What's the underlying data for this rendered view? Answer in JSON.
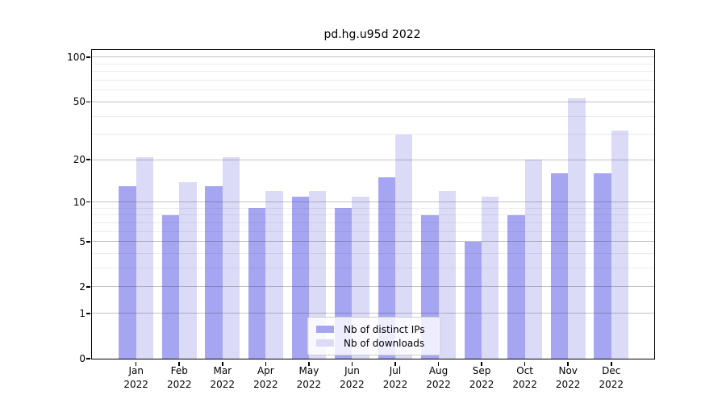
{
  "title": "pd.hg.u95d 2022",
  "chart_data": {
    "type": "bar",
    "title": "pd.hg.u95d 2022",
    "categories": [
      "Jan",
      "Feb",
      "Mar",
      "Apr",
      "May",
      "Jun",
      "Jul",
      "Aug",
      "Sep",
      "Oct",
      "Nov",
      "Dec"
    ],
    "category_year": "2022",
    "series": [
      {
        "name": "Nb of distinct IPs",
        "color": "#a5a5f2",
        "values": [
          13,
          8,
          13,
          9,
          11,
          9,
          15,
          8,
          5,
          8,
          16,
          16
        ]
      },
      {
        "name": "Nb of downloads",
        "color": "#dbdbf8",
        "values": [
          21,
          14,
          21,
          12,
          12,
          11,
          30,
          12,
          11,
          20,
          53,
          32
        ]
      }
    ],
    "xlabel": "",
    "ylabel": "",
    "yscale": "log1p",
    "ylim": [
      0,
      112
    ],
    "yticks": [
      100,
      50,
      20,
      10,
      5,
      2,
      1,
      0
    ],
    "minor_gridlines": [
      3,
      4,
      6,
      7,
      8,
      9,
      30,
      40,
      60,
      70,
      80,
      90
    ],
    "grid": true,
    "legend_position": "lower center"
  }
}
